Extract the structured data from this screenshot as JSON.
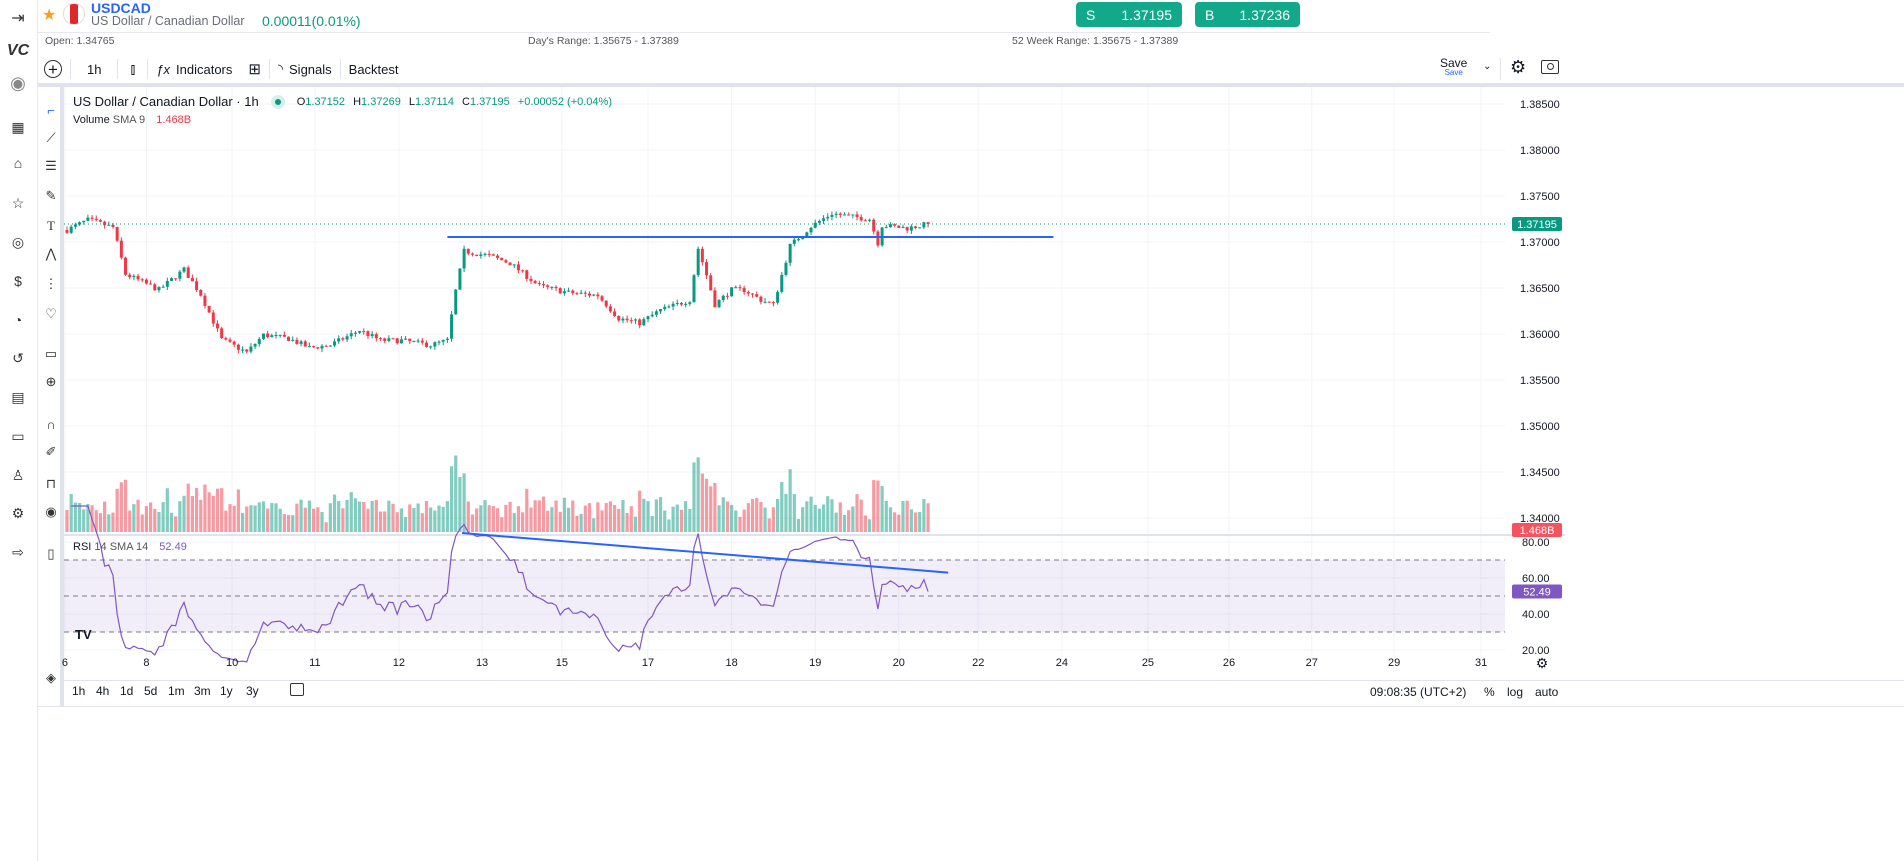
{
  "header": {
    "symbol": "USDCAD",
    "name": "US Dollar / Canadian Dollar",
    "change": "0.00011(0.01%)",
    "sell_label": "S",
    "sell_price": "1.37195",
    "buy_label": "B",
    "buy_price": "1.37236",
    "open": "Open: 1.34765",
    "days_range": "Day's Range: 1.35675 - 1.37389",
    "week52_range": "52 Week Range: 1.35675 - 1.37389"
  },
  "toolbar": {
    "interval": "1h",
    "indicators": "Indicators",
    "signals": "Signals",
    "backtest": "Backtest",
    "save": "Save",
    "save_sub": "Save"
  },
  "legend": {
    "title": "US Dollar / Canadian Dollar · 1h",
    "o_label": "O",
    "o": "1.37152",
    "h_label": "H",
    "h": "1.37269",
    "l_label": "L",
    "l": "1.37114",
    "c_label": "C",
    "c": "1.37195",
    "chg": "+0.00052 (+0.04%)",
    "volume_label": "Volume",
    "volume_sma": "SMA 9",
    "volume_value": "1.468B",
    "rsi_label": "RSI",
    "rsi_params": "14 SMA 14",
    "rsi_value": "52.49"
  },
  "colors": {
    "up": "#089981",
    "down": "#f23645",
    "rsi": "#7e57c2",
    "trend": "#2962ff",
    "accent": "#12a98b"
  },
  "chart_data": {
    "type": "candlestick",
    "price_ticks": [
      "1.38500",
      "1.38000",
      "1.37500",
      "1.37000",
      "1.36500",
      "1.36000",
      "1.35500",
      "1.35000",
      "1.34500",
      "1.34000"
    ],
    "price_tick_values": [
      1.385,
      1.38,
      1.375,
      1.37,
      1.365,
      1.36,
      1.355,
      1.35,
      1.345,
      1.34
    ],
    "last_price": "1.37195",
    "last_price_value": 1.37195,
    "volume_tag": "1.468B",
    "rsi_ticks": [
      "80.00",
      "60.00",
      "40.00",
      "20.00"
    ],
    "rsi_tick_values": [
      80,
      60,
      40,
      20
    ],
    "rsi_tag": "52.49",
    "rsi_last": 52.49,
    "rsi_band": [
      30,
      70
    ],
    "x_labels": [
      {
        "t": "6",
        "i": -0.5
      },
      {
        "t": "8",
        "i": 19
      },
      {
        "t": "10",
        "i": 39.5
      },
      {
        "t": "11",
        "i": 59.3
      },
      {
        "t": "12",
        "i": 79.4
      },
      {
        "t": "13",
        "i": 99.3
      },
      {
        "t": "15",
        "i": 118.4
      },
      {
        "t": "17",
        "i": 139
      },
      {
        "t": "18",
        "i": 159
      },
      {
        "t": "19",
        "i": 179
      },
      {
        "t": "20",
        "i": 199
      },
      {
        "t": "22",
        "i": 218
      },
      {
        "t": "24",
        "i": 238
      },
      {
        "t": "25",
        "i": 258.6
      },
      {
        "t": "26",
        "i": 278
      },
      {
        "t": "27",
        "i": 297.8
      },
      {
        "t": "29",
        "i": 317.5
      },
      {
        "t": "31",
        "i": 338.3
      }
    ],
    "candle_count": 207,
    "close_path": [
      [
        0,
        1.3713
      ],
      [
        5,
        1.3724
      ],
      [
        11,
        1.3716
      ],
      [
        14,
        1.3665
      ],
      [
        22,
        1.3648
      ],
      [
        28,
        1.367
      ],
      [
        32,
        1.3643
      ],
      [
        37,
        1.3594
      ],
      [
        43,
        1.358
      ],
      [
        47,
        1.3599
      ],
      [
        53,
        1.3595
      ],
      [
        58,
        1.3585
      ],
      [
        63,
        1.3588
      ],
      [
        70,
        1.3604
      ],
      [
        75,
        1.3593
      ],
      [
        80,
        1.3593
      ],
      [
        87,
        1.3588
      ],
      [
        91,
        1.3593
      ],
      [
        93,
        1.3647
      ],
      [
        95,
        1.369
      ],
      [
        101,
        1.3685
      ],
      [
        106,
        1.3677
      ],
      [
        113,
        1.3652
      ],
      [
        120,
        1.3645
      ],
      [
        127,
        1.3642
      ],
      [
        132,
        1.3617
      ],
      [
        137,
        1.3612
      ],
      [
        142,
        1.3626
      ],
      [
        149,
        1.3637
      ],
      [
        151,
        1.3693
      ],
      [
        153,
        1.3664
      ],
      [
        155,
        1.3632
      ],
      [
        159,
        1.3648
      ],
      [
        162,
        1.3648
      ],
      [
        166,
        1.3637
      ],
      [
        169,
        1.3632
      ],
      [
        171,
        1.3664
      ],
      [
        173,
        1.3696
      ],
      [
        178,
        1.3717
      ],
      [
        183,
        1.3731
      ],
      [
        187,
        1.3728
      ],
      [
        192,
        1.3725
      ],
      [
        194,
        1.3699
      ],
      [
        195,
        1.3718
      ],
      [
        201,
        1.3715
      ],
      [
        206,
        1.37195
      ]
    ],
    "resistance_line": {
      "price": 1.37055,
      "from_i": 91,
      "to_i": 236
    },
    "rsi_trendline": {
      "from": [
        94.5,
        85
      ],
      "to": [
        210.8,
        63
      ]
    }
  },
  "bottom": {
    "ranges": [
      "1h",
      "4h",
      "1d",
      "5d",
      "1m",
      "3m",
      "1y",
      "3y"
    ],
    "clock": "09:08:35 (UTC+2)",
    "pct": "%",
    "log": "log",
    "auto": "auto"
  }
}
